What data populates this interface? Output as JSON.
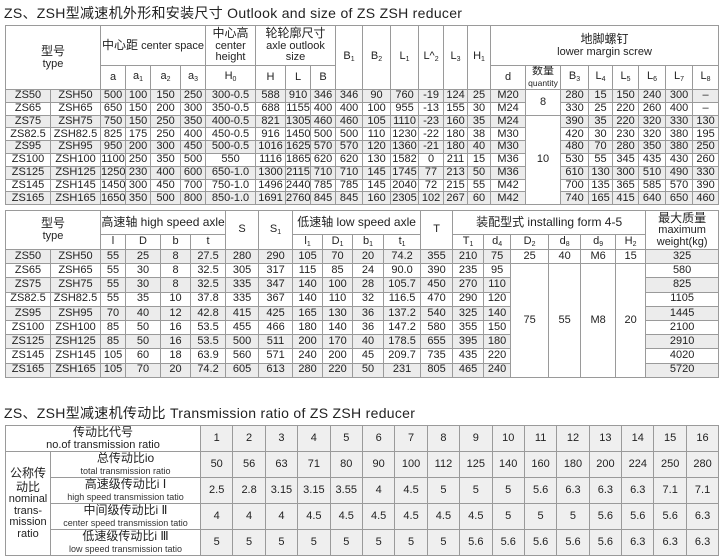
{
  "outlook_title": "ZS、ZSH型减速机外形和安装尺寸   Outlook and size of ZS ZSH reducer",
  "ratio_title": "ZS、ZSH型减速机传动比   Transmission ratio of ZS ZSH reducer",
  "table1": {
    "type_cn": "型号",
    "type_en": "type",
    "center_space_cn": "中心距",
    "center_space_en": "center space",
    "center_height_cn": "中心高",
    "center_height_en": "center height",
    "axle_outlook_cn": "轮轮廓尺寸",
    "axle_outlook_en": "axle outlook size",
    "screw_cn": "地脚螺钉",
    "screw_en": "lower margin screw",
    "quantity_cn": "数量",
    "quantity_en": "quantity",
    "columns": [
      {
        "t": "a",
        "s": ""
      },
      {
        "t": "a",
        "s": "1"
      },
      {
        "t": "a",
        "s": "2"
      },
      {
        "t": "a",
        "s": "3"
      },
      {
        "t": "H",
        "s": "0"
      },
      {
        "t": "H",
        "s": ""
      },
      {
        "t": "L",
        "s": ""
      },
      {
        "t": "B",
        "s": ""
      },
      {
        "t": "B",
        "s": "1"
      },
      {
        "t": "B",
        "s": "2"
      },
      {
        "t": "L",
        "s": "1"
      },
      {
        "t": "L^",
        "s": "2"
      },
      {
        "t": "L",
        "s": "3"
      },
      {
        "t": "H",
        "s": "1"
      },
      {
        "t": "d",
        "s": ""
      },
      {
        "t": "B",
        "s": "3"
      },
      {
        "t": "L",
        "s": "4"
      },
      {
        "t": "L",
        "s": "5"
      },
      {
        "t": "L",
        "s": "6"
      },
      {
        "t": "L",
        "s": "7"
      },
      {
        "t": "L",
        "s": "8"
      }
    ],
    "quantity_groups": [
      {
        "value": "8",
        "rows": 2
      },
      {
        "value": "10",
        "rows": 7
      }
    ],
    "rows": [
      [
        "ZS50",
        "ZSH50",
        "500",
        "100",
        "150",
        "250",
        "300-0.5",
        "588",
        "910",
        "346",
        "346",
        "90",
        "760",
        "-19",
        "124",
        "25",
        "M20",
        "280",
        "15",
        "150",
        "240",
        "300",
        "–"
      ],
      [
        "ZS65",
        "ZSH65",
        "650",
        "150",
        "200",
        "300",
        "350-0.5",
        "688",
        "1155",
        "400",
        "400",
        "100",
        "955",
        "-13",
        "155",
        "30",
        "M24",
        "330",
        "25",
        "220",
        "260",
        "400",
        "–"
      ],
      [
        "ZS75",
        "ZSH75",
        "750",
        "150",
        "250",
        "350",
        "400-0.5",
        "821",
        "1305",
        "460",
        "460",
        "105",
        "1110",
        "-23",
        "160",
        "35",
        "M24",
        "390",
        "35",
        "220",
        "320",
        "330",
        "130"
      ],
      [
        "ZS82.5",
        "ZSH82.5",
        "825",
        "175",
        "250",
        "400",
        "450-0.5",
        "916",
        "1450",
        "500",
        "500",
        "110",
        "1230",
        "-22",
        "180",
        "38",
        "M30",
        "420",
        "30",
        "230",
        "320",
        "380",
        "195"
      ],
      [
        "ZS95",
        "ZSH95",
        "950",
        "200",
        "300",
        "450",
        "500-0.5",
        "1016",
        "1625",
        "570",
        "570",
        "120",
        "1360",
        "-21",
        "180",
        "40",
        "M30",
        "480",
        "70",
        "280",
        "350",
        "380",
        "250"
      ],
      [
        "ZS100",
        "ZSH100",
        "1100",
        "250",
        "350",
        "500",
        "550",
        "1116",
        "1865",
        "620",
        "620",
        "130",
        "1582",
        "0",
        "211",
        "15",
        "M36",
        "530",
        "55",
        "345",
        "435",
        "430",
        "260"
      ],
      [
        "ZS125",
        "ZSH125",
        "1250",
        "230",
        "400",
        "600",
        "650-1.0",
        "1300",
        "2115",
        "710",
        "710",
        "145",
        "1745",
        "77",
        "213",
        "50",
        "M36",
        "610",
        "130",
        "300",
        "510",
        "490",
        "330"
      ],
      [
        "ZS145",
        "ZSH145",
        "1450",
        "300",
        "450",
        "700",
        "750-1.0",
        "1496",
        "2440",
        "785",
        "785",
        "145",
        "2040",
        "72",
        "215",
        "55",
        "M42",
        "700",
        "135",
        "365",
        "585",
        "570",
        "390"
      ],
      [
        "ZS165",
        "ZSH165",
        "1650",
        "350",
        "500",
        "800",
        "850-1.0",
        "1691",
        "2760",
        "845",
        "845",
        "160",
        "2305",
        "102",
        "267",
        "60",
        "M42",
        "740",
        "165",
        "415",
        "640",
        "650",
        "460"
      ]
    ]
  },
  "table2": {
    "type_cn": "型号",
    "type_en": "type",
    "high_speed": "高速轴 high speed axle",
    "low_speed": "低速轴 low speed axle",
    "installing": "装配型式 installing form 4-5",
    "weight_cn": "最大质量",
    "weight_en": "maximum weight(kg)",
    "high_cols": [
      {
        "t": "l",
        "s": ""
      },
      {
        "t": "D",
        "s": ""
      },
      {
        "t": "b",
        "s": ""
      },
      {
        "t": "t",
        "s": ""
      }
    ],
    "S": {
      "t": "S",
      "s": ""
    },
    "S1": {
      "t": "S",
      "s": "1"
    },
    "low_cols": [
      {
        "t": "l",
        "s": "1"
      },
      {
        "t": "D",
        "s": "1"
      },
      {
        "t": "b",
        "s": "1"
      },
      {
        "t": "t",
        "s": "1"
      }
    ],
    "T": {
      "t": "T",
      "s": ""
    },
    "install_cols": [
      {
        "t": "T",
        "s": "1"
      },
      {
        "t": "d",
        "s": "4"
      },
      {
        "t": "D",
        "s": "2"
      },
      {
        "t": "d",
        "s": "8"
      },
      {
        "t": "d",
        "s": "9"
      },
      {
        "t": "H",
        "s": "2"
      }
    ],
    "install_groups": [
      {
        "values": [
          "25",
          "40",
          "M6",
          "15"
        ],
        "rows": 1
      },
      {
        "values": [
          "75",
          "55",
          "M8",
          "20"
        ],
        "rows": 8
      }
    ],
    "rows": [
      [
        "ZS50",
        "ZSH50",
        "55",
        "25",
        "8",
        "27.5",
        "280",
        "290",
        "105",
        "70",
        "20",
        "74.2",
        "355",
        "210",
        "75",
        "325"
      ],
      [
        "ZS65",
        "ZSH65",
        "55",
        "30",
        "8",
        "32.5",
        "305",
        "317",
        "115",
        "85",
        "24",
        "90.0",
        "390",
        "235",
        "95",
        "580"
      ],
      [
        "ZS75",
        "ZSH75",
        "55",
        "30",
        "8",
        "32.5",
        "335",
        "347",
        "140",
        "100",
        "28",
        "105.7",
        "450",
        "270",
        "110",
        "825"
      ],
      [
        "ZS82.5",
        "ZSH82.5",
        "55",
        "35",
        "10",
        "37.8",
        "335",
        "367",
        "140",
        "110",
        "32",
        "116.5",
        "470",
        "290",
        "120",
        "1105"
      ],
      [
        "ZS95",
        "ZSH95",
        "70",
        "40",
        "12",
        "42.8",
        "415",
        "425",
        "165",
        "130",
        "36",
        "137.2",
        "540",
        "325",
        "140",
        "1445"
      ],
      [
        "ZS100",
        "ZSH100",
        "85",
        "50",
        "16",
        "53.5",
        "455",
        "466",
        "180",
        "140",
        "36",
        "147.2",
        "580",
        "355",
        "150",
        "2100"
      ],
      [
        "ZS125",
        "ZSH125",
        "85",
        "50",
        "16",
        "53.5",
        "500",
        "511",
        "200",
        "170",
        "40",
        "178.5",
        "655",
        "395",
        "180",
        "2910"
      ],
      [
        "ZS145",
        "ZSH145",
        "105",
        "60",
        "18",
        "63.9",
        "560",
        "571",
        "240",
        "200",
        "45",
        "209.7",
        "735",
        "435",
        "220",
        "4020"
      ],
      [
        "ZS165",
        "ZSH165",
        "105",
        "70",
        "20",
        "74.2",
        "605",
        "613",
        "280",
        "220",
        "50",
        "231",
        "805",
        "465",
        "240",
        "5720"
      ]
    ]
  },
  "table3": {
    "no_cn": "传动比代号",
    "no_en": "no.of transmission ratio",
    "nominal_cn": "公称传动比",
    "nominal_en": "nominal trans-mission ratio",
    "numbers": [
      "1",
      "2",
      "3",
      "4",
      "5",
      "6",
      "7",
      "8",
      "9",
      "10",
      "11",
      "12",
      "13",
      "14",
      "15",
      "16"
    ],
    "rows": [
      {
        "cn": "总传动比io",
        "en": "total transmission ratio",
        "values": [
          "50",
          "56",
          "63",
          "71",
          "80",
          "90",
          "100",
          "112",
          "125",
          "140",
          "160",
          "180",
          "200",
          "224",
          "250",
          "280"
        ]
      },
      {
        "cn": "高速级传动比i Ⅰ",
        "en": "high speed transmission tatio",
        "values": [
          "2.5",
          "2.8",
          "3.15",
          "3.15",
          "3.55",
          "4",
          "4.5",
          "5",
          "5",
          "5",
          "5.6",
          "6.3",
          "6.3",
          "6.3",
          "7.1",
          "7.1"
        ]
      },
      {
        "cn": "中间级传动比i Ⅱ",
        "en": "center speed transmission tatio",
        "values": [
          "4",
          "4",
          "4",
          "4.5",
          "4.5",
          "4.5",
          "4.5",
          "4.5",
          "4.5",
          "5",
          "5",
          "5",
          "5.6",
          "5.6",
          "5.6",
          "6.3"
        ]
      },
      {
        "cn": "低速级传动比i Ⅲ",
        "en": "low speed transmission tatio",
        "values": [
          "5",
          "5",
          "5",
          "5",
          "5",
          "5",
          "5",
          "5",
          "5.6",
          "5.6",
          "5.6",
          "5.6",
          "5.6",
          "6.3",
          "6.3",
          "6.3"
        ]
      }
    ]
  }
}
